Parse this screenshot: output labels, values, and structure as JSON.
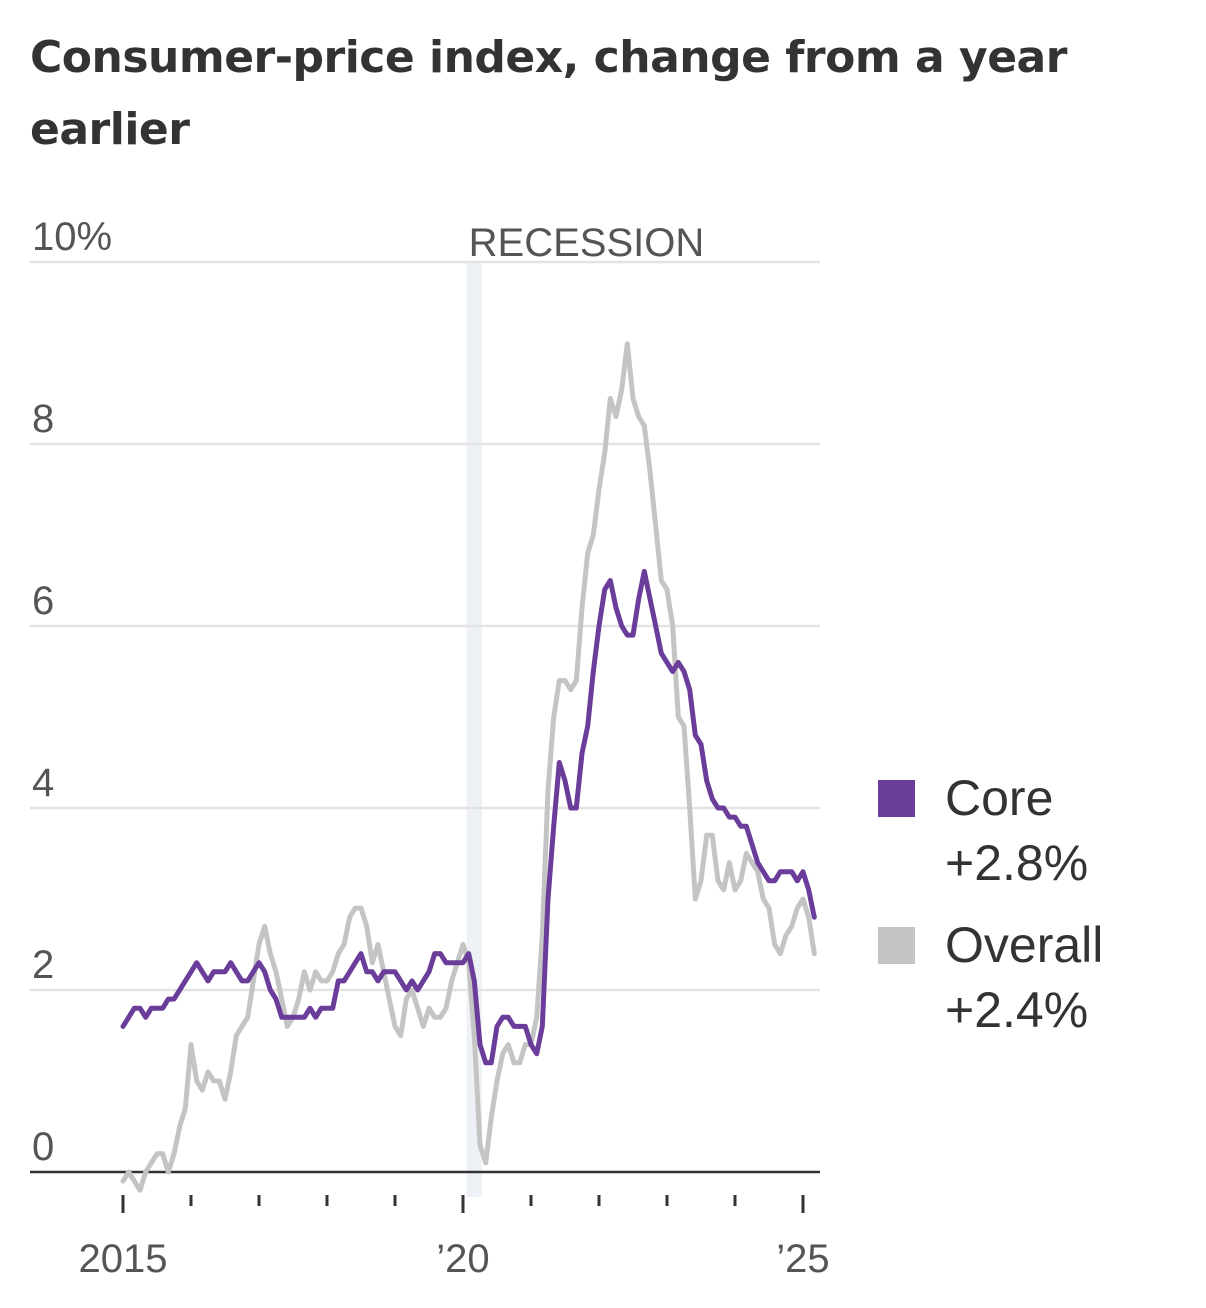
{
  "chart_data": {
    "type": "line",
    "title": "Consumer-price index, change from a year earlier",
    "x_start": "2015-01",
    "x_frequency": "monthly",
    "x_ticks": [
      2015,
      2016,
      2017,
      2018,
      2019,
      2020,
      2021,
      2022,
      2023,
      2024,
      2025
    ],
    "x_tick_labels": {
      "2015": "2015",
      "2020": "’20",
      "2025": "’25"
    },
    "y_ticks": [
      0,
      2,
      4,
      6,
      8,
      10
    ],
    "y_tick_labels": [
      "0",
      "2",
      "4",
      "6",
      "8",
      "10%"
    ],
    "ylim": [
      0,
      10
    ],
    "grid": true,
    "annotation": {
      "label": "RECESSION",
      "start": "2020-02",
      "end": "2020-04",
      "color": "#eef1f5"
    },
    "legend_placement": "right",
    "series": [
      {
        "name": "Core",
        "label": "+2.8%",
        "color": "#6a3d9a",
        "values": [
          1.6,
          1.7,
          1.8,
          1.8,
          1.7,
          1.8,
          1.8,
          1.8,
          1.9,
          1.9,
          2.0,
          2.1,
          2.2,
          2.3,
          2.2,
          2.1,
          2.2,
          2.2,
          2.2,
          2.3,
          2.2,
          2.1,
          2.1,
          2.2,
          2.3,
          2.2,
          2.0,
          1.9,
          1.7,
          1.7,
          1.7,
          1.7,
          1.7,
          1.8,
          1.7,
          1.8,
          1.8,
          1.8,
          2.1,
          2.1,
          2.2,
          2.3,
          2.4,
          2.2,
          2.2,
          2.1,
          2.2,
          2.2,
          2.2,
          2.1,
          2.0,
          2.1,
          2.0,
          2.1,
          2.2,
          2.4,
          2.4,
          2.3,
          2.3,
          2.3,
          2.3,
          2.4,
          2.1,
          1.4,
          1.2,
          1.2,
          1.6,
          1.7,
          1.7,
          1.6,
          1.6,
          1.6,
          1.4,
          1.3,
          1.6,
          3.0,
          3.8,
          4.5,
          4.3,
          4.0,
          4.0,
          4.6,
          4.9,
          5.5,
          6.0,
          6.4,
          6.5,
          6.2,
          6.0,
          5.9,
          5.9,
          6.3,
          6.6,
          6.3,
          6.0,
          5.7,
          5.6,
          5.5,
          5.6,
          5.5,
          5.3,
          4.8,
          4.7,
          4.3,
          4.1,
          4.0,
          4.0,
          3.9,
          3.9,
          3.8,
          3.8,
          3.6,
          3.4,
          3.3,
          3.2,
          3.2,
          3.3,
          3.3,
          3.3,
          3.2,
          3.3,
          3.1,
          2.8
        ]
      },
      {
        "name": "Overall",
        "label": "+2.4%",
        "color": "#c4c4c4",
        "values": [
          -0.1,
          0.0,
          -0.1,
          -0.2,
          0.0,
          0.1,
          0.2,
          0.2,
          0.0,
          0.2,
          0.5,
          0.7,
          1.4,
          1.0,
          0.9,
          1.1,
          1.0,
          1.0,
          0.8,
          1.1,
          1.5,
          1.6,
          1.7,
          2.1,
          2.5,
          2.7,
          2.4,
          2.2,
          1.9,
          1.6,
          1.7,
          1.9,
          2.2,
          2.0,
          2.2,
          2.1,
          2.1,
          2.2,
          2.4,
          2.5,
          2.8,
          2.9,
          2.9,
          2.7,
          2.3,
          2.5,
          2.2,
          1.9,
          1.6,
          1.5,
          1.9,
          2.0,
          1.8,
          1.6,
          1.8,
          1.7,
          1.7,
          1.8,
          2.1,
          2.3,
          2.5,
          2.3,
          1.5,
          0.3,
          0.1,
          0.6,
          1.0,
          1.3,
          1.4,
          1.2,
          1.2,
          1.4,
          1.4,
          1.7,
          2.6,
          4.2,
          5.0,
          5.4,
          5.4,
          5.3,
          5.4,
          6.2,
          6.8,
          7.0,
          7.5,
          7.9,
          8.5,
          8.3,
          8.6,
          9.1,
          8.5,
          8.3,
          8.2,
          7.7,
          7.1,
          6.5,
          6.4,
          6.0,
          5.0,
          4.9,
          4.0,
          3.0,
          3.2,
          3.7,
          3.7,
          3.2,
          3.1,
          3.4,
          3.1,
          3.2,
          3.5,
          3.4,
          3.3,
          3.0,
          2.9,
          2.5,
          2.4,
          2.6,
          2.7,
          2.9,
          3.0,
          2.8,
          2.4
        ]
      }
    ]
  }
}
